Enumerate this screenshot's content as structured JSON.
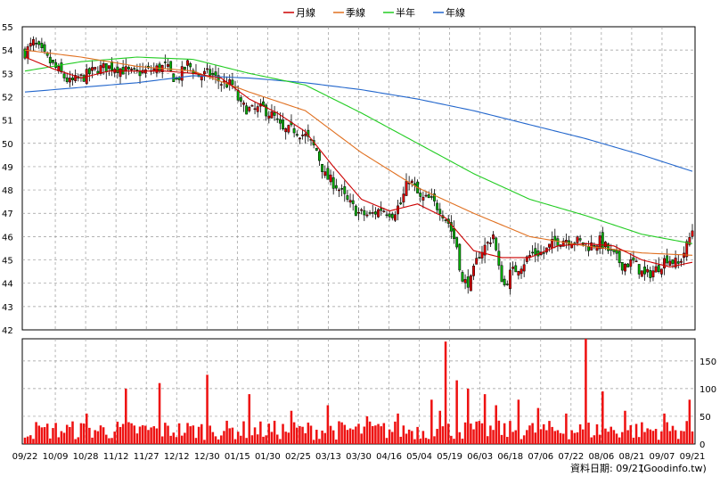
{
  "chart_data": {
    "type": "candlestick",
    "legend": [
      {
        "label": "月線",
        "color": "#cc0000"
      },
      {
        "label": "季線",
        "color": "#e07020"
      },
      {
        "label": "半年",
        "color": "#22cc22"
      },
      {
        "label": "年線",
        "color": "#2266cc"
      }
    ],
    "legend_placement": "top-center",
    "price_axis": {
      "min": 42,
      "max": 55,
      "ticks": [
        42,
        43,
        44,
        45,
        46,
        47,
        48,
        49,
        50,
        51,
        52,
        53,
        54,
        55
      ],
      "side": "left"
    },
    "volume_axis": {
      "min": 0,
      "max": 190,
      "ticks": [
        0,
        50,
        100,
        150
      ],
      "side": "right"
    },
    "x_tick_labels": [
      "09/22",
      "10/09",
      "10/28",
      "11/12",
      "11/27",
      "12/12",
      "12/30",
      "01/15",
      "01/30",
      "02/25",
      "03/13",
      "03/30",
      "04/16",
      "05/04",
      "05/19",
      "06/03",
      "06/18",
      "07/06",
      "07/22",
      "08/06",
      "08/21",
      "09/07",
      "09/21"
    ],
    "grid": true,
    "anchors": {
      "close": [
        [
          0,
          53.9
        ],
        [
          3,
          54.3
        ],
        [
          8,
          53.6
        ],
        [
          12,
          53.1
        ],
        [
          16,
          52.6
        ],
        [
          20,
          52.8
        ],
        [
          26,
          53.2
        ],
        [
          32,
          53.3
        ],
        [
          38,
          53.0
        ],
        [
          44,
          53.1
        ],
        [
          50,
          53.3
        ],
        [
          54,
          52.7
        ],
        [
          58,
          53.4
        ],
        [
          62,
          52.9
        ],
        [
          66,
          53.0
        ],
        [
          70,
          52.6
        ],
        [
          74,
          52.5
        ],
        [
          77,
          51.6
        ],
        [
          81,
          51.4
        ],
        [
          85,
          51.5
        ],
        [
          89,
          51.1
        ],
        [
          92,
          50.5
        ],
        [
          96,
          50.6
        ],
        [
          100,
          50.3
        ],
        [
          104,
          49.7
        ],
        [
          107,
          48.6
        ],
        [
          111,
          48.2
        ],
        [
          115,
          47.5
        ],
        [
          119,
          47.0
        ],
        [
          123,
          46.9
        ],
        [
          127,
          47.2
        ],
        [
          131,
          47.0
        ],
        [
          134,
          47.4
        ],
        [
          137,
          48.5
        ],
        [
          141,
          47.6
        ],
        [
          144,
          47.6
        ],
        [
          148,
          47.2
        ],
        [
          151,
          46.6
        ],
        [
          154,
          45.6
        ],
        [
          156,
          44.0
        ],
        [
          159,
          44.1
        ],
        [
          162,
          45.3
        ],
        [
          165,
          45.7
        ],
        [
          167,
          46.1
        ],
        [
          169,
          44.6
        ],
        [
          171,
          43.9
        ],
        [
          173,
          44.4
        ],
        [
          177,
          44.8
        ],
        [
          181,
          45.3
        ],
        [
          185,
          45.3
        ],
        [
          189,
          45.8
        ],
        [
          193,
          45.9
        ],
        [
          197,
          45.8
        ],
        [
          201,
          45.6
        ],
        [
          205,
          45.8
        ],
        [
          209,
          45.3
        ],
        [
          213,
          44.8
        ],
        [
          217,
          44.9
        ],
        [
          221,
          44.3
        ],
        [
          225,
          44.6
        ],
        [
          229,
          45.1
        ],
        [
          233,
          44.8
        ],
        [
          236,
          45.6
        ],
        [
          238,
          46.3
        ]
      ],
      "monthly": [
        [
          0,
          53.7
        ],
        [
          10,
          53.2
        ],
        [
          20,
          52.8
        ],
        [
          30,
          53.1
        ],
        [
          40,
          53.1
        ],
        [
          50,
          53.1
        ],
        [
          60,
          53.0
        ],
        [
          70,
          52.8
        ],
        [
          80,
          51.9
        ],
        [
          90,
          51.3
        ],
        [
          100,
          50.5
        ],
        [
          110,
          49.0
        ],
        [
          120,
          47.6
        ],
        [
          130,
          47.1
        ],
        [
          140,
          47.4
        ],
        [
          150,
          46.8
        ],
        [
          160,
          45.4
        ],
        [
          170,
          45.1
        ],
        [
          180,
          45.1
        ],
        [
          190,
          45.6
        ],
        [
          200,
          45.7
        ],
        [
          210,
          45.6
        ],
        [
          220,
          45.0
        ],
        [
          230,
          44.7
        ],
        [
          238,
          44.9
        ]
      ],
      "quarterly": [
        [
          0,
          54.0
        ],
        [
          20,
          53.7
        ],
        [
          40,
          53.3
        ],
        [
          60,
          53.1
        ],
        [
          80,
          52.2
        ],
        [
          100,
          51.4
        ],
        [
          120,
          49.6
        ],
        [
          140,
          48.1
        ],
        [
          160,
          47.0
        ],
        [
          180,
          46.0
        ],
        [
          200,
          45.6
        ],
        [
          220,
          45.3
        ],
        [
          238,
          45.2
        ]
      ],
      "half_year": [
        [
          0,
          53.1
        ],
        [
          20,
          53.5
        ],
        [
          40,
          53.7
        ],
        [
          60,
          53.6
        ],
        [
          80,
          53.0
        ],
        [
          100,
          52.5
        ],
        [
          120,
          51.3
        ],
        [
          140,
          50.0
        ],
        [
          160,
          48.7
        ],
        [
          180,
          47.6
        ],
        [
          200,
          46.9
        ],
        [
          220,
          46.1
        ],
        [
          238,
          45.7
        ]
      ],
      "yearly": [
        [
          0,
          52.2
        ],
        [
          20,
          52.4
        ],
        [
          40,
          52.6
        ],
        [
          60,
          52.9
        ],
        [
          80,
          52.8
        ],
        [
          100,
          52.6
        ],
        [
          120,
          52.3
        ],
        [
          140,
          51.9
        ],
        [
          160,
          51.4
        ],
        [
          180,
          50.8
        ],
        [
          200,
          50.2
        ],
        [
          220,
          49.5
        ],
        [
          238,
          48.8
        ]
      ],
      "volume_spikes": [
        [
          6,
          30
        ],
        [
          22,
          55
        ],
        [
          36,
          100
        ],
        [
          48,
          110
        ],
        [
          65,
          125
        ],
        [
          80,
          90
        ],
        [
          95,
          60
        ],
        [
          108,
          70
        ],
        [
          122,
          50
        ],
        [
          133,
          55
        ],
        [
          145,
          80
        ],
        [
          148,
          60
        ],
        [
          150,
          185
        ],
        [
          154,
          115
        ],
        [
          158,
          100
        ],
        [
          164,
          90
        ],
        [
          168,
          70
        ],
        [
          176,
          80
        ],
        [
          183,
          65
        ],
        [
          193,
          55
        ],
        [
          200,
          190
        ],
        [
          206,
          95
        ],
        [
          214,
          60
        ],
        [
          228,
          55
        ],
        [
          237,
          80
        ]
      ],
      "volume_base": 25
    },
    "n_days": 239
  },
  "source_label": "資料日期: 09/21",
  "site_label": "(Goodinfo.tw)"
}
